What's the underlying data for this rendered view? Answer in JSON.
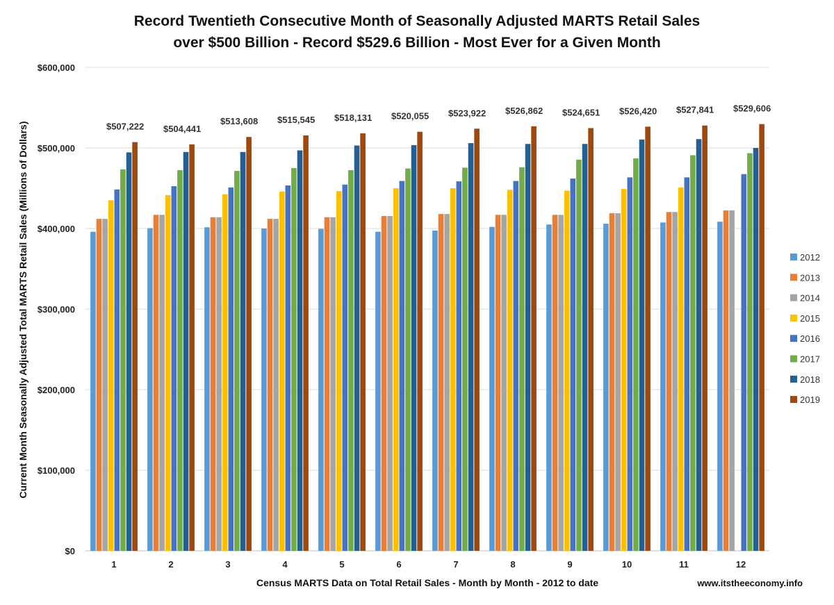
{
  "chart_data": {
    "type": "bar",
    "title_lines": [
      "Record Twentieth Consecutive Month of Seasonally Adjusted MARTS Retail Sales",
      "over $500 Billion - Record $529.6 Billion - Most Ever for a Given Month"
    ],
    "xlabel": "Census MARTS Data on Total Retail Sales - Month by Month - 2012 to date",
    "ylabel": "Current Month Seasonally Adjusted Total MARTS Retail Sales (Millions of Dollars)",
    "source": "www.itstheeconomy.info",
    "ylim": [
      0,
      600000
    ],
    "y_ticks": [
      {
        "value": 0,
        "label": "$0"
      },
      {
        "value": 100000,
        "label": "$100,000"
      },
      {
        "value": 200000,
        "label": "$200,000"
      },
      {
        "value": 300000,
        "label": "$300,000"
      },
      {
        "value": 400000,
        "label": "$400,000"
      },
      {
        "value": 500000,
        "label": "$500,000"
      },
      {
        "value": 600000,
        "label": "$600,000"
      }
    ],
    "grid": true,
    "legend_position": "right",
    "categories": [
      "1",
      "2",
      "3",
      "4",
      "5",
      "6",
      "7",
      "8",
      "9",
      "10",
      "11",
      "12"
    ],
    "series": [
      {
        "name": "2012",
        "color": "#5B9BD5",
        "values": [
          396000,
          400500,
          401500,
          400000,
          399500,
          396000,
          397500,
          402000,
          405000,
          406000,
          407500,
          408500
        ]
      },
      {
        "name": "2013",
        "color": "#ED7D31",
        "values": [
          412000,
          417000,
          414000,
          412000,
          414000,
          415500,
          418000,
          417000,
          417000,
          419000,
          420500,
          422500
        ]
      },
      {
        "name": "2014",
        "color": "#A5A5A5",
        "values": [
          412000,
          417000,
          414000,
          412000,
          414000,
          415500,
          418000,
          417000,
          417000,
          419000,
          420500,
          422500
        ]
      },
      {
        "name": "2015",
        "color": "#FFC000",
        "values": [
          435000,
          441500,
          442500,
          446000,
          446500,
          450000,
          450000,
          448000,
          447000,
          449000,
          451000,
          null
        ]
      },
      {
        "name": "2016",
        "color": "#4472C4",
        "values": [
          448500,
          452500,
          451000,
          453500,
          454500,
          459000,
          458500,
          459000,
          462000,
          463500,
          463500,
          467500
        ]
      },
      {
        "name": "2017",
        "color": "#70AD47",
        "values": [
          473500,
          472500,
          471500,
          475000,
          472500,
          474500,
          475500,
          476000,
          485500,
          487000,
          491000,
          493500
        ]
      },
      {
        "name": "2018",
        "color": "#255E91",
        "values": [
          494500,
          495000,
          495000,
          497000,
          503000,
          503500,
          506000,
          505000,
          505000,
          510500,
          511000,
          500000
        ]
      },
      {
        "name": "2019",
        "color": "#9E480E",
        "values": [
          507222,
          504441,
          513608,
          515545,
          518131,
          520055,
          523922,
          526862,
          524651,
          526420,
          527841,
          529606
        ]
      }
    ],
    "data_labels": [
      "$507,222",
      "$504,441",
      "$513,608",
      "$515,545",
      "$518,131",
      "$520,055",
      "$523,922",
      "$526,862",
      "$524,651",
      "$526,420",
      "$527,841",
      "$529,606"
    ]
  }
}
